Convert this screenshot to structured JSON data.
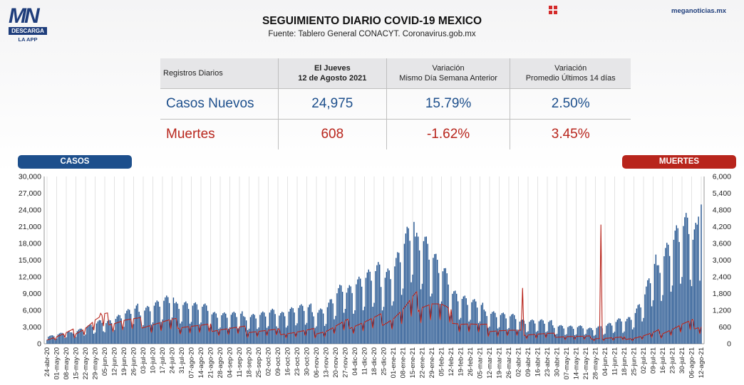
{
  "header": {
    "logo_mark": "MN",
    "logo_sub": "DESCARGA",
    "logo_app": "LA APP",
    "title": "SEGUIMIENTO DIARIO COVID-19 MEXICO",
    "subtitle": "Fuente: Tablero General CONACYT. Coronavirus.gob.mx",
    "site": "meganoticias.mx",
    "accent_blue": "#1d4f8c",
    "accent_red": "#b8251c"
  },
  "table": {
    "headers": {
      "registros": "Registros Diarios",
      "day": "El Jueves",
      "date": "12 de Agosto 2021",
      "var1_title": "Variación",
      "var1_sub": "Mismo Día Semana Anterior",
      "var2_title": "Variación",
      "var2_sub": "Promedio Últimos 14 días"
    },
    "casos": {
      "label": "Casos Nuevos",
      "value": "24,975",
      "var_semana": "15.79%",
      "var_promedio": "2.50%"
    },
    "muertes": {
      "label": "Muertes",
      "value": "608",
      "var_semana": "-1.62%",
      "var_promedio": "3.45%"
    }
  },
  "chart_labels": {
    "casos": "CASOS",
    "muertes": "MUERTES"
  },
  "chart_data": {
    "type": "bar",
    "title": "",
    "xlabel": "",
    "ylabel": "",
    "ylim": [
      0,
      30000
    ],
    "y2lim": [
      0,
      6000
    ],
    "y_ticks": [
      "0",
      "3,000",
      "6,000",
      "9,000",
      "12,000",
      "15,000",
      "18,000",
      "21,000",
      "24,000",
      "27,000",
      "30,000"
    ],
    "y2_ticks": [
      "0",
      "600",
      "1,200",
      "1,800",
      "2,400",
      "3,000",
      "3,600",
      "4,200",
      "4,800",
      "5,400",
      "6,000"
    ],
    "x_ticks": [
      "24-abr-20",
      "01-may-20",
      "08-may-20",
      "15-may-20",
      "22-may-20",
      "29-may-20",
      "05-jun-20",
      "12-jun-20",
      "19-jun-20",
      "26-jun-20",
      "03-jul-20",
      "10-jul-20",
      "17-jul-20",
      "24-jul-20",
      "31-jul-20",
      "07-ago-20",
      "14-ago-20",
      "21-ago-20",
      "28-ago-20",
      "04-sep-20",
      "11-sep-20",
      "18-sep-20",
      "25-sep-20",
      "02-oct-20",
      "09-oct-20",
      "16-oct-20",
      "23-oct-20",
      "30-oct-20",
      "06-nov-20",
      "13-nov-20",
      "20-nov-20",
      "27-nov-20",
      "04-dic-20",
      "11-dic-20",
      "18-dic-20",
      "25-dic-20",
      "01-ene-21",
      "08-ene-21",
      "15-ene-21",
      "22-ene-21",
      "29-ene-21",
      "05-feb-21",
      "12-feb-21",
      "19-feb-21",
      "26-feb-21",
      "05-mar-21",
      "12-mar-21",
      "19-mar-21",
      "26-mar-21",
      "02-abr-21",
      "09-abr-21",
      "16-abr-21",
      "23-abr-21",
      "30-abr-21",
      "07-may-21",
      "14-may-21",
      "21-may-21",
      "28-may-21",
      "04-jun-21",
      "11-jun-21",
      "18-jun-21",
      "25-jun-21",
      "02-jul-21",
      "09-jul-21",
      "16-jul-21",
      "23-jul-21",
      "30-jul-21",
      "06-ago-21",
      "12-ago-21"
    ],
    "series": [
      {
        "name": "CASOS",
        "axis": "left",
        "color": "#1d4f8c",
        "kind": "bar",
        "weekly_values": [
          1200,
          1500,
          1800,
          2200,
          2800,
          3200,
          3800,
          4300,
          5000,
          5500,
          6000,
          6500,
          7000,
          7200,
          7000,
          6500,
          6000,
          5500,
          5000,
          4800,
          4700,
          4800,
          4900,
          5000,
          5200,
          5600,
          6000,
          5800,
          5600,
          6000,
          8000,
          9500,
          10500,
          11000,
          11500,
          12000,
          13000,
          16000,
          19000,
          19000,
          15000,
          12000,
          9500,
          8000,
          7000,
          6200,
          5500,
          5000,
          4500,
          4200,
          3900,
          3800,
          3500,
          3200,
          2900,
          2700,
          2700,
          2800,
          3000,
          3400,
          4000,
          5000,
          7500,
          12000,
          15500,
          17500,
          19000,
          19000,
          22000
        ],
        "last_value": 24975,
        "peak_value": 22339
      },
      {
        "name": "MUERTES",
        "axis": "right",
        "color": "#b8251c",
        "kind": "line",
        "weekly_values": [
          150,
          250,
          350,
          450,
          600,
          800,
          900,
          850,
          850,
          800,
          750,
          750,
          750,
          750,
          700,
          650,
          600,
          580,
          560,
          540,
          520,
          500,
          470,
          450,
          430,
          420,
          420,
          430,
          450,
          480,
          600,
          700,
          750,
          800,
          850,
          900,
          1000,
          1200,
          1450,
          1600,
          1500,
          1300,
          1000,
          800,
          700,
          600,
          550,
          500,
          450,
          400,
          370,
          350,
          330,
          300,
          280,
          250,
          230,
          220,
          200,
          200,
          200,
          220,
          280,
          350,
          450,
          550,
          650,
          700,
          700
        ],
        "last_value": 608,
        "spikes": [
          {
            "x": "02-jun-20",
            "value": 1092
          },
          {
            "x": "05-abr-21",
            "value": 2000
          },
          {
            "x": "01-jun-21",
            "value": 4272
          }
        ]
      }
    ],
    "legend": "top-left and top-right labels",
    "grid": "vertical"
  }
}
